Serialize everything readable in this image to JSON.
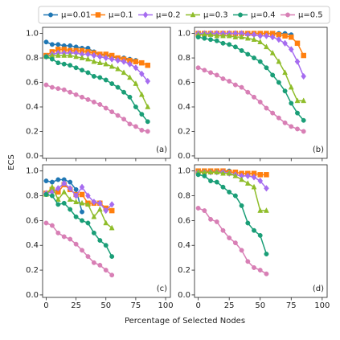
{
  "xlabel": "Percentage of Selected Nodes",
  "ylabel": "ECS",
  "series": [
    {
      "name": "μ=0.01",
      "color": "#1f77b4",
      "marker": "circle"
    },
    {
      "name": "μ=0.1",
      "color": "#ff7f0e",
      "marker": "square"
    },
    {
      "name": "μ=0.2",
      "color": "#a66cf0",
      "marker": "diamond"
    },
    {
      "name": "μ=0.3",
      "color": "#8fbd2a",
      "marker": "triangle"
    },
    {
      "name": "μ=0.4",
      "color": "#1a9e77",
      "marker": "circle"
    },
    {
      "name": "μ=0.5",
      "color": "#d87fb5",
      "marker": "circle"
    }
  ],
  "chart_data": [
    {
      "type": "line",
      "panel_label": "(a)",
      "xlim": [
        -3,
        104
      ],
      "ylim": [
        -0.02,
        1.05
      ],
      "xticks": [
        0,
        25,
        50,
        75,
        100
      ],
      "show_xtick_labels": false,
      "yticks": [
        {
          "value": 0,
          "label": "0.0"
        },
        {
          "value": 0.2,
          "label": "0.2"
        },
        {
          "value": 0.4,
          "label": "0.4"
        },
        {
          "value": 0.6,
          "label": "0.6"
        },
        {
          "value": 0.8,
          "label": "0.8"
        },
        {
          "value": 1,
          "label": "1.0"
        }
      ],
      "series": [
        {
          "x": [
            0,
            5,
            10,
            15,
            20,
            25,
            30,
            35,
            40,
            45,
            50,
            55,
            60,
            65,
            70,
            75
          ],
          "values": [
            0.93,
            0.91,
            0.91,
            0.9,
            0.9,
            0.89,
            0.88,
            0.88,
            0.85,
            0.83,
            0.82,
            0.81,
            0.8,
            0.8,
            0.79,
            0.78
          ]
        },
        {
          "x": [
            0,
            5,
            10,
            15,
            20,
            25,
            30,
            35,
            40,
            45,
            50,
            55,
            60,
            65,
            70,
            75,
            80,
            85
          ],
          "values": [
            0.82,
            0.85,
            0.87,
            0.87,
            0.86,
            0.86,
            0.86,
            0.85,
            0.84,
            0.83,
            0.83,
            0.82,
            0.8,
            0.79,
            0.78,
            0.77,
            0.76,
            0.74
          ]
        },
        {
          "x": [
            0,
            5,
            10,
            15,
            20,
            25,
            30,
            35,
            40,
            45,
            50,
            55,
            60,
            65,
            70,
            75,
            80,
            85
          ],
          "values": [
            0.81,
            0.83,
            0.84,
            0.84,
            0.84,
            0.84,
            0.83,
            0.83,
            0.82,
            0.81,
            0.8,
            0.79,
            0.78,
            0.77,
            0.75,
            0.72,
            0.67,
            0.61
          ]
        },
        {
          "x": [
            0,
            5,
            10,
            15,
            20,
            25,
            30,
            35,
            40,
            45,
            50,
            55,
            60,
            65,
            70,
            75,
            80,
            85
          ],
          "values": [
            0.81,
            0.82,
            0.82,
            0.82,
            0.82,
            0.81,
            0.8,
            0.79,
            0.77,
            0.76,
            0.75,
            0.73,
            0.71,
            0.68,
            0.64,
            0.59,
            0.5,
            0.4
          ]
        },
        {
          "x": [
            0,
            5,
            10,
            15,
            20,
            25,
            30,
            35,
            40,
            45,
            50,
            55,
            60,
            65,
            70,
            75,
            80,
            85
          ],
          "values": [
            0.81,
            0.79,
            0.76,
            0.75,
            0.74,
            0.72,
            0.7,
            0.68,
            0.65,
            0.64,
            0.62,
            0.59,
            0.56,
            0.52,
            0.48,
            0.4,
            0.34,
            0.28
          ]
        },
        {
          "x": [
            0,
            5,
            10,
            15,
            20,
            25,
            30,
            35,
            40,
            45,
            50,
            55,
            60,
            65,
            70,
            75,
            80,
            85
          ],
          "values": [
            0.58,
            0.56,
            0.55,
            0.54,
            0.52,
            0.5,
            0.48,
            0.46,
            0.44,
            0.42,
            0.39,
            0.36,
            0.33,
            0.3,
            0.26,
            0.24,
            0.21,
            0.2
          ]
        }
      ]
    },
    {
      "type": "line",
      "panel_label": "(b)",
      "xlim": [
        -3,
        104
      ],
      "ylim": [
        -0.02,
        1.05
      ],
      "xticks": [
        0,
        25,
        50,
        75,
        100
      ],
      "show_xtick_labels": false,
      "yticks": [
        {
          "value": 0,
          "label": "0.0"
        },
        {
          "value": 0.2,
          "label": "0.2"
        },
        {
          "value": 0.4,
          "label": "0.4"
        },
        {
          "value": 0.6,
          "label": "0.6"
        },
        {
          "value": 0.8,
          "label": "0.8"
        },
        {
          "value": 1,
          "label": "1.0"
        }
      ],
      "series": [
        {
          "x": [
            0,
            5,
            10,
            15,
            20,
            25,
            30,
            35,
            40,
            45,
            50,
            55,
            60,
            65,
            70,
            75
          ],
          "values": [
            1.0,
            1.0,
            1.0,
            1.0,
            1.0,
            1.0,
            1.0,
            1.0,
            1.0,
            1.0,
            1.0,
            1.0,
            1.0,
            1.0,
            1.0,
            0.99
          ]
        },
        {
          "x": [
            0,
            5,
            10,
            15,
            20,
            25,
            30,
            35,
            40,
            45,
            50,
            55,
            60,
            65,
            70,
            75,
            80,
            85
          ],
          "values": [
            1.0,
            1.0,
            1.0,
            1.0,
            1.0,
            1.0,
            1.0,
            1.0,
            1.0,
            1.0,
            1.0,
            1.0,
            1.0,
            0.99,
            0.98,
            0.97,
            0.92,
            0.82
          ]
        },
        {
          "x": [
            0,
            5,
            10,
            15,
            20,
            25,
            30,
            35,
            40,
            45,
            50,
            55,
            60,
            65,
            70,
            75,
            80,
            85
          ],
          "values": [
            1.0,
            1.0,
            1.0,
            1.0,
            1.0,
            1.0,
            1.0,
            1.0,
            0.99,
            0.99,
            0.98,
            0.98,
            0.97,
            0.95,
            0.92,
            0.87,
            0.77,
            0.65
          ]
        },
        {
          "x": [
            0,
            5,
            10,
            15,
            20,
            25,
            30,
            35,
            40,
            45,
            50,
            55,
            60,
            65,
            70,
            75,
            80,
            85
          ],
          "values": [
            0.99,
            0.99,
            0.99,
            0.98,
            0.98,
            0.98,
            0.97,
            0.97,
            0.96,
            0.95,
            0.93,
            0.89,
            0.84,
            0.77,
            0.68,
            0.56,
            0.45,
            0.45
          ]
        },
        {
          "x": [
            0,
            5,
            10,
            15,
            20,
            25,
            30,
            35,
            40,
            45,
            50,
            55,
            60,
            65,
            70,
            75,
            80,
            85
          ],
          "values": [
            0.97,
            0.96,
            0.95,
            0.94,
            0.92,
            0.91,
            0.89,
            0.86,
            0.83,
            0.8,
            0.77,
            0.72,
            0.66,
            0.6,
            0.53,
            0.43,
            0.35,
            0.29
          ]
        },
        {
          "x": [
            0,
            5,
            10,
            15,
            20,
            25,
            30,
            35,
            40,
            45,
            50,
            55,
            60,
            65,
            70,
            75,
            80,
            85
          ],
          "values": [
            0.72,
            0.7,
            0.68,
            0.66,
            0.63,
            0.61,
            0.58,
            0.56,
            0.52,
            0.48,
            0.44,
            0.39,
            0.35,
            0.31,
            0.27,
            0.24,
            0.22,
            0.2
          ]
        }
      ]
    },
    {
      "type": "line",
      "panel_label": "(c)",
      "xlim": [
        -3,
        104
      ],
      "ylim": [
        -0.02,
        1.05
      ],
      "xticks": [
        0,
        25,
        50,
        75,
        100
      ],
      "show_xtick_labels": true,
      "yticks": [
        {
          "value": 0,
          "label": "0.0"
        },
        {
          "value": 0.2,
          "label": "0.2"
        },
        {
          "value": 0.4,
          "label": "0.4"
        },
        {
          "value": 0.6,
          "label": "0.6"
        },
        {
          "value": 0.8,
          "label": "0.8"
        },
        {
          "value": 1,
          "label": "1.0"
        }
      ],
      "series": [
        {
          "x": [
            0,
            5,
            10,
            15,
            20,
            25,
            30
          ],
          "values": [
            0.92,
            0.91,
            0.93,
            0.93,
            0.91,
            0.85,
            0.67
          ]
        },
        {
          "x": [
            0,
            5,
            10,
            15,
            20,
            25,
            30,
            35,
            40,
            45,
            50,
            55
          ],
          "values": [
            0.82,
            0.85,
            0.83,
            0.89,
            0.85,
            0.81,
            0.81,
            0.74,
            0.74,
            0.74,
            0.7,
            0.68
          ]
        },
        {
          "x": [
            0,
            5,
            10,
            15,
            20,
            25,
            30,
            35,
            40,
            45,
            50,
            55
          ],
          "values": [
            0.82,
            0.83,
            0.86,
            0.9,
            0.86,
            0.8,
            0.87,
            0.8,
            0.75,
            0.74,
            0.68,
            0.73
          ]
        },
        {
          "x": [
            0,
            5,
            10,
            15,
            20,
            25,
            30,
            35,
            40,
            45,
            50,
            55
          ],
          "values": [
            0.81,
            0.87,
            0.77,
            0.83,
            0.77,
            0.75,
            0.74,
            0.73,
            0.63,
            0.69,
            0.58,
            0.54
          ]
        },
        {
          "x": [
            0,
            5,
            10,
            15,
            20,
            25,
            30,
            35,
            40,
            45,
            50,
            55
          ],
          "values": [
            0.81,
            0.8,
            0.73,
            0.74,
            0.69,
            0.63,
            0.6,
            0.58,
            0.5,
            0.44,
            0.4,
            0.31
          ]
        },
        {
          "x": [
            0,
            5,
            10,
            15,
            20,
            25,
            30,
            35,
            40,
            45,
            50,
            55
          ],
          "values": [
            0.58,
            0.56,
            0.5,
            0.47,
            0.45,
            0.41,
            0.36,
            0.31,
            0.26,
            0.24,
            0.2,
            0.16
          ]
        }
      ]
    },
    {
      "type": "line",
      "panel_label": "(d)",
      "xlim": [
        -3,
        104
      ],
      "ylim": [
        -0.02,
        1.05
      ],
      "xticks": [
        0,
        25,
        50,
        75,
        100
      ],
      "show_xtick_labels": true,
      "yticks": [
        {
          "value": 0,
          "label": "0.0"
        },
        {
          "value": 0.2,
          "label": "0.2"
        },
        {
          "value": 0.4,
          "label": "0.4"
        },
        {
          "value": 0.6,
          "label": "0.6"
        },
        {
          "value": 0.8,
          "label": "0.8"
        },
        {
          "value": 1,
          "label": "1.0"
        }
      ],
      "series": [
        {
          "x": [
            0,
            5,
            10,
            15,
            20,
            25
          ],
          "values": [
            1.0,
            1.0,
            1.0,
            1.0,
            1.0,
            1.0
          ]
        },
        {
          "x": [
            0,
            5,
            10,
            15,
            20,
            25,
            30,
            35,
            40,
            45,
            50,
            55
          ],
          "values": [
            1.0,
            1.0,
            1.0,
            1.0,
            1.0,
            0.99,
            0.99,
            0.98,
            0.98,
            0.98,
            0.97,
            0.97
          ]
        },
        {
          "x": [
            0,
            5,
            10,
            15,
            20,
            25,
            30,
            35,
            40,
            45,
            50,
            55
          ],
          "values": [
            0.99,
            0.99,
            0.99,
            0.99,
            0.99,
            0.98,
            0.97,
            0.96,
            0.96,
            0.95,
            0.92,
            0.86
          ]
        },
        {
          "x": [
            0,
            5,
            10,
            15,
            20,
            25,
            30,
            35,
            40,
            45,
            50,
            55
          ],
          "values": [
            0.99,
            0.99,
            0.99,
            0.99,
            0.98,
            0.98,
            0.96,
            0.93,
            0.9,
            0.87,
            0.68,
            0.68
          ]
        },
        {
          "x": [
            0,
            5,
            10,
            15,
            20,
            25,
            30,
            35,
            40,
            45,
            50,
            55
          ],
          "values": [
            0.97,
            0.96,
            0.92,
            0.91,
            0.87,
            0.83,
            0.8,
            0.72,
            0.58,
            0.52,
            0.48,
            0.33
          ]
        },
        {
          "x": [
            0,
            5,
            10,
            15,
            20,
            25,
            30,
            35,
            40,
            45,
            50,
            55
          ],
          "values": [
            0.7,
            0.68,
            0.61,
            0.59,
            0.52,
            0.46,
            0.42,
            0.36,
            0.27,
            0.22,
            0.2,
            0.17
          ]
        }
      ]
    }
  ]
}
